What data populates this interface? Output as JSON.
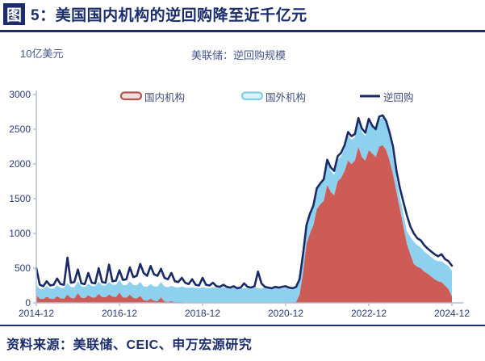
{
  "header": {
    "badge": "图",
    "title_rest": "5：美国国内机构的逆回购降至近千亿元"
  },
  "chart": {
    "unit_label": "10亿美元",
    "subtitle": "美联储：逆回购规模"
  },
  "legend": {
    "items": [
      {
        "label": "国内机构",
        "type": "area",
        "color": "#cd5c57",
        "border": "#b5544f",
        "fill": "#f3dedd"
      },
      {
        "label": "国外机构",
        "type": "area",
        "color": "#8dd1ee",
        "border": "#7fd0e4",
        "fill": "#daf2f9"
      },
      {
        "label": "逆回购",
        "type": "line",
        "color": "#1a2a66"
      }
    ]
  },
  "footer": {
    "source": "资料来源：美联储、CEIC、申万宏源研究"
  },
  "chart_data": {
    "type": "area",
    "subtype": "stacked-areas-with-total-line",
    "title": "美联储：逆回购规模",
    "unit": "10亿美元",
    "x_interval": "monthly",
    "x_start": "2014-12",
    "x_end": "2024-12",
    "x_tick_labels": [
      "2014-12",
      "2016-12",
      "2018-12",
      "2020-12",
      "2022-12",
      "2024-12"
    ],
    "ylim": [
      0,
      3000
    ],
    "y_ticks": [
      0,
      500,
      1000,
      1500,
      2000,
      2500,
      3000
    ],
    "grid": false,
    "legend_position": "top-inside",
    "series": [
      {
        "name": "国内机构",
        "type": "stacked-area",
        "color": "#cd5c57",
        "values": [
          110,
          60,
          55,
          90,
          60,
          55,
          95,
          65,
          60,
          120,
          70,
          65,
          140,
          75,
          70,
          110,
          80,
          75,
          130,
          85,
          80,
          120,
          90,
          85,
          150,
          80,
          75,
          120,
          70,
          65,
          100,
          40,
          30,
          60,
          30,
          25,
          80,
          20,
          15,
          25,
          10,
          10,
          15,
          5,
          5,
          10,
          5,
          5,
          10,
          5,
          5,
          8,
          5,
          5,
          8,
          5,
          5,
          8,
          5,
          5,
          10,
          5,
          5,
          10,
          8,
          5,
          8,
          5,
          5,
          8,
          5,
          5,
          10,
          10,
          10,
          15,
          120,
          430,
          850,
          1000,
          1120,
          1350,
          1420,
          1470,
          1700,
          1600,
          1550,
          1750,
          1800,
          1900,
          2050,
          2000,
          2050,
          2250,
          2100,
          2050,
          2200,
          2150,
          2100,
          2250,
          2270,
          2200,
          2050,
          1850,
          1600,
          1350,
          1100,
          850,
          700,
          560,
          520,
          500,
          450,
          420,
          380,
          340,
          310,
          300,
          250,
          200,
          90
        ]
      },
      {
        "name": "国外机构",
        "type": "stacked-area",
        "color": "#8dd1ee",
        "values": [
          150,
          140,
          145,
          150,
          145,
          150,
          160,
          150,
          155,
          165,
          155,
          160,
          170,
          160,
          155,
          165,
          160,
          165,
          175,
          165,
          170,
          180,
          170,
          175,
          185,
          175,
          180,
          190,
          185,
          190,
          200,
          195,
          200,
          210,
          205,
          210,
          220,
          215,
          210,
          220,
          215,
          210,
          220,
          215,
          210,
          215,
          210,
          205,
          215,
          210,
          205,
          215,
          210,
          205,
          215,
          205,
          200,
          210,
          200,
          195,
          205,
          200,
          195,
          210,
          205,
          200,
          210,
          205,
          200,
          210,
          205,
          200,
          210,
          205,
          200,
          210,
          215,
          235,
          250,
          260,
          265,
          275,
          280,
          290,
          330,
          300,
          290,
          310,
          310,
          320,
          360,
          350,
          330,
          360,
          360,
          350,
          400,
          380,
          380,
          400,
          400,
          390,
          370,
          280,
          190,
          180,
          170,
          175,
          250,
          320,
          310,
          300,
          290,
          280,
          280,
          280,
          290,
          300,
          310,
          330,
          370
        ]
      },
      {
        "name": "逆回购",
        "type": "line",
        "color": "#1a2a66",
        "values": [
          500,
          260,
          240,
          310,
          250,
          260,
          350,
          270,
          260,
          650,
          290,
          300,
          480,
          280,
          270,
          430,
          290,
          280,
          500,
          300,
          290,
          550,
          310,
          320,
          470,
          330,
          340,
          510,
          370,
          390,
          560,
          430,
          390,
          530,
          410,
          390,
          490,
          360,
          340,
          430,
          310,
          300,
          360,
          290,
          270,
          340,
          260,
          250,
          360,
          260,
          250,
          290,
          240,
          230,
          260,
          230,
          220,
          240,
          210,
          220,
          280,
          230,
          220,
          240,
          450,
          280,
          230,
          220,
          210,
          230,
          220,
          230,
          240,
          220,
          210,
          230,
          340,
          700,
          1120,
          1280,
          1400,
          1650,
          1720,
          1780,
          2060,
          1950,
          1900,
          2110,
          2160,
          2270,
          2460,
          2400,
          2430,
          2660,
          2510,
          2450,
          2650,
          2550,
          2500,
          2680,
          2700,
          2620,
          2450,
          2250,
          1900,
          1650,
          1450,
          1260,
          1100,
          1000,
          930,
          900,
          830,
          780,
          740,
          700,
          670,
          700,
          630,
          600,
          535
        ]
      }
    ]
  }
}
